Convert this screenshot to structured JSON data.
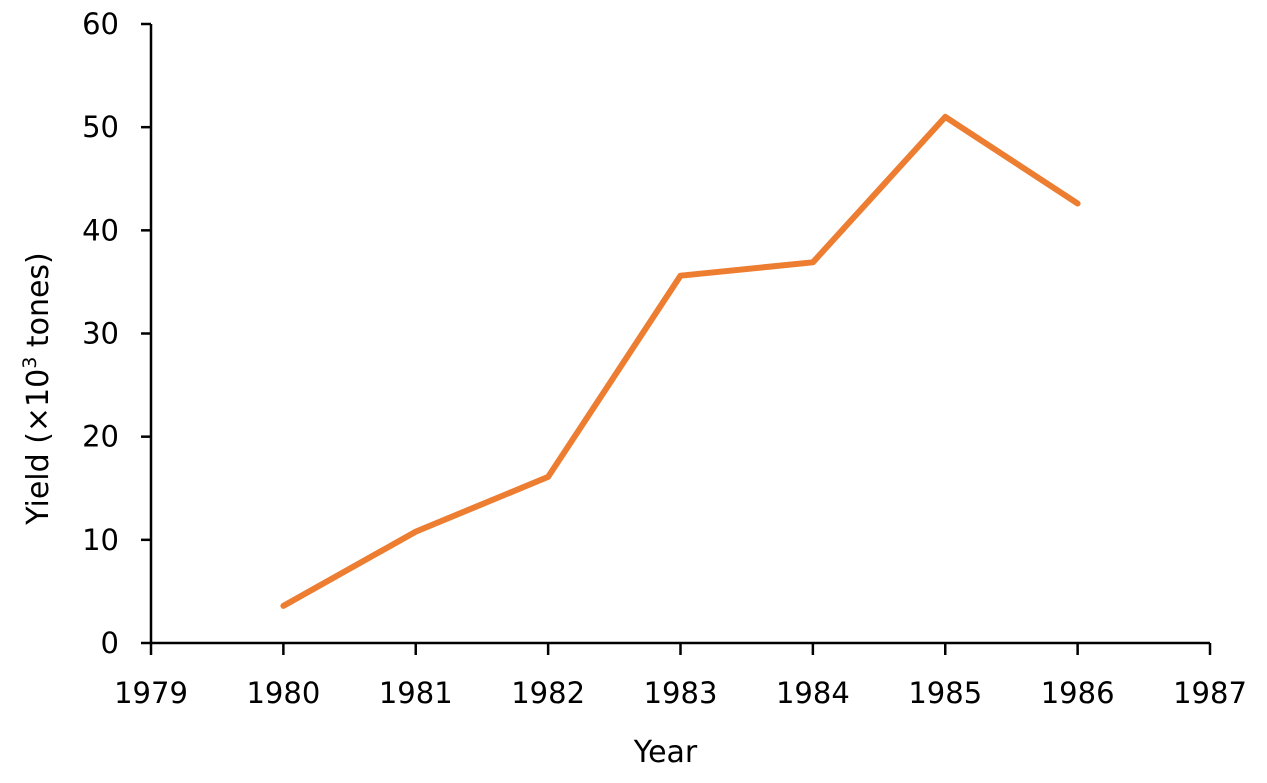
{
  "chart_data": {
    "type": "line",
    "title": "",
    "xlabel": "Year",
    "ylabel": "Yield (×10",
    "ylabel_superscript": "3",
    "ylabel_suffix": " tones)",
    "xlim": [
      1979,
      1987
    ],
    "ylim": [
      0,
      60
    ],
    "xticks": [
      1979,
      1980,
      1981,
      1982,
      1983,
      1984,
      1985,
      1986,
      1987
    ],
    "yticks": [
      0,
      10,
      20,
      30,
      40,
      50,
      60
    ],
    "grid": false,
    "legend": "none",
    "series": [
      {
        "color": "#ED7D31",
        "x": [
          1980,
          1981,
          1982,
          1983,
          1984,
          1985,
          1986
        ],
        "y": [
          3.6,
          10.8,
          16.1,
          35.6,
          36.9,
          51.0,
          42.6
        ]
      }
    ]
  }
}
